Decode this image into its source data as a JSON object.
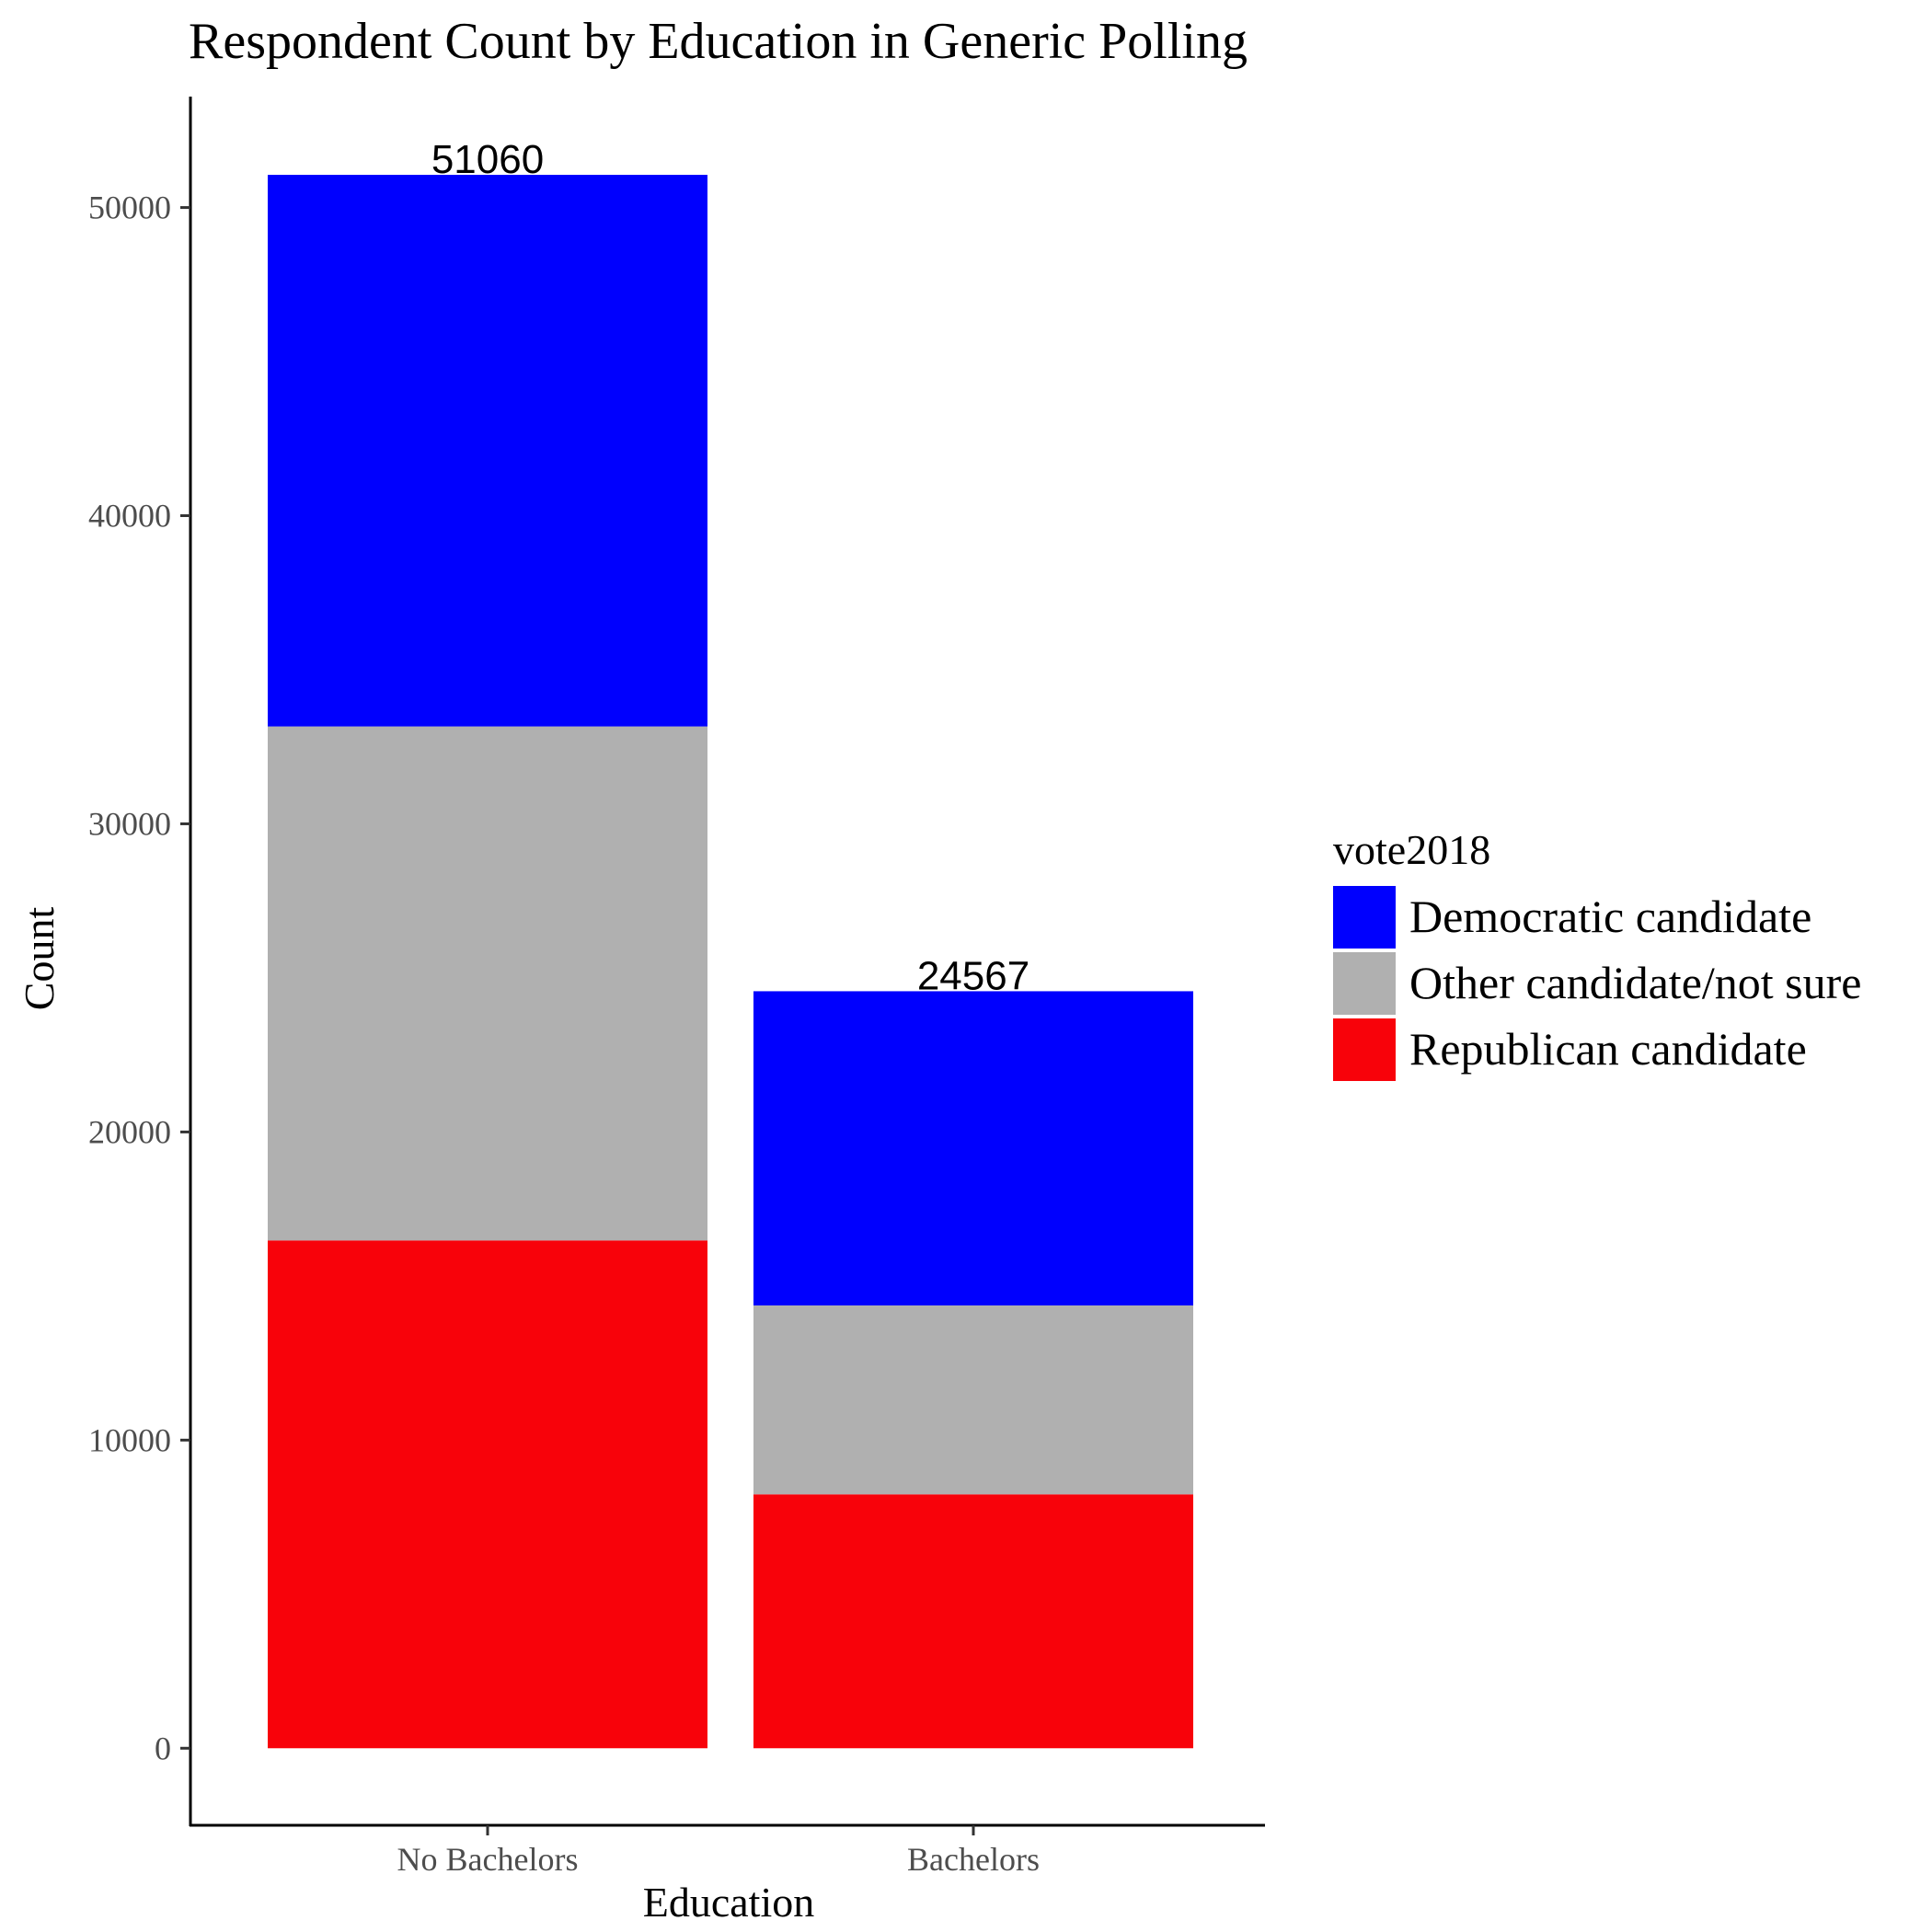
{
  "chart_data": {
    "type": "bar",
    "stacked": true,
    "title": "Respondent Count by Education in Generic Polling",
    "xlabel": "Education",
    "ylabel": "Count",
    "categories": [
      "No Bachelors",
      "Bachelors"
    ],
    "series": [
      {
        "name": "Republican candidate",
        "color": "#f8020a",
        "values": [
          16480,
          8240
        ]
      },
      {
        "name": "Other candidate/not sure",
        "color": "#b0b0b0",
        "values": [
          16680,
          6130
        ]
      },
      {
        "name": "Democratic candidate",
        "color": "#0000fe",
        "values": [
          17900,
          10197
        ]
      }
    ],
    "totals": [
      "51060",
      "24567"
    ],
    "yticks": [
      0,
      10000,
      20000,
      30000,
      40000,
      50000
    ],
    "ytick_labels": [
      "0",
      "10000",
      "20000",
      "30000",
      "40000",
      "50000"
    ],
    "ylim": [
      -2500,
      53600
    ],
    "grid": false,
    "legend": {
      "title": "vote2018",
      "position": "right",
      "entries": [
        "Democratic candidate",
        "Other candidate/not sure",
        "Republican candidate"
      ]
    }
  }
}
